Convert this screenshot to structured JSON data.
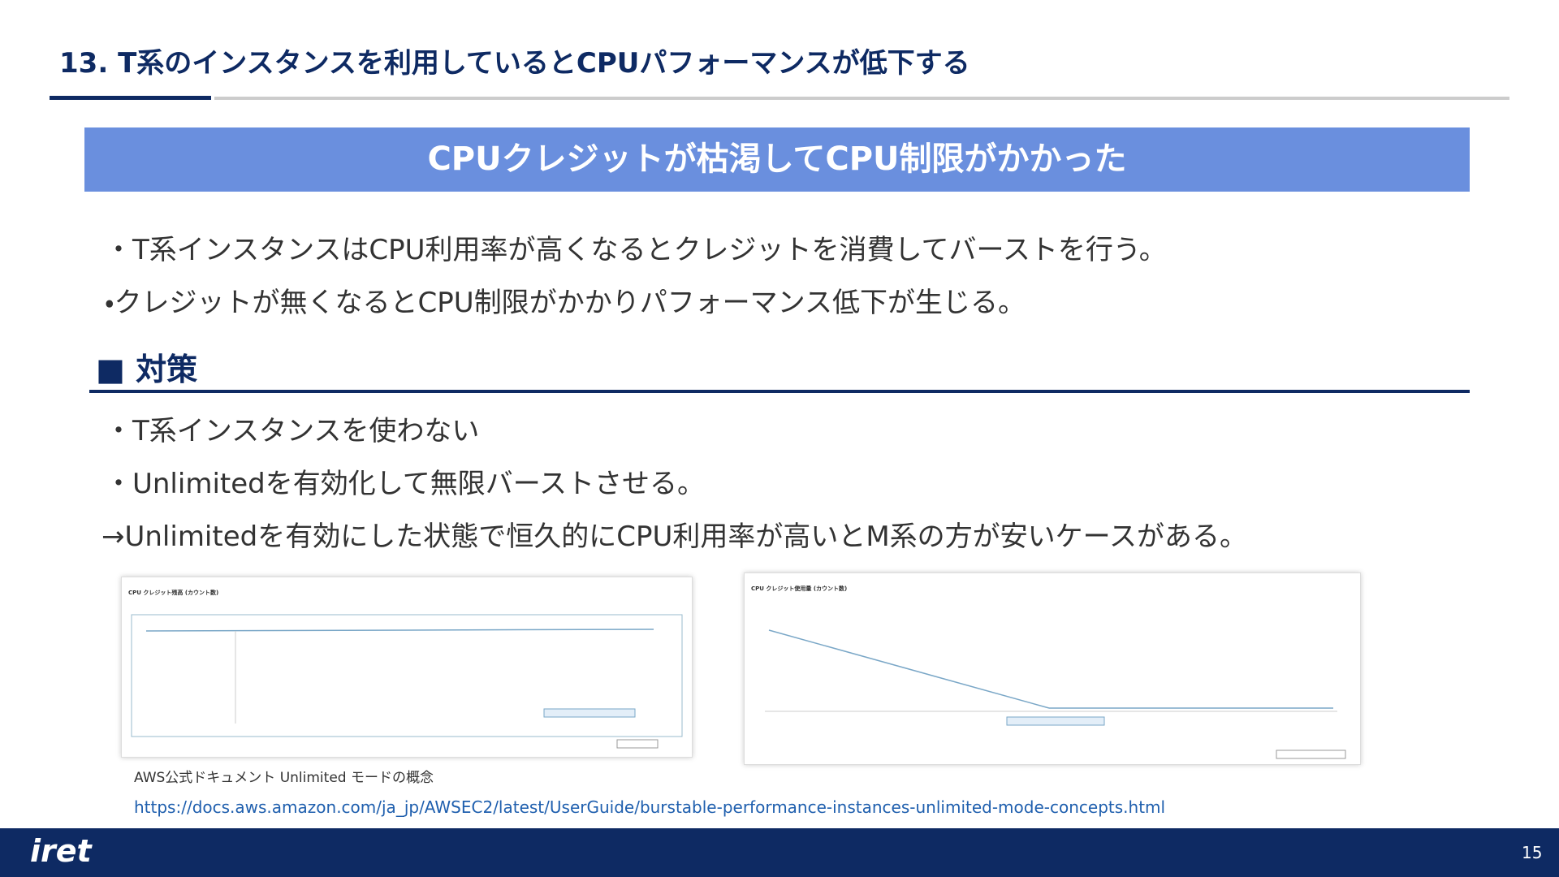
{
  "header": {
    "title": "13.  T系のインスタンスを利用しているとCPUパフォーマンスが低下する"
  },
  "banner": "CPUクレジットが枯渇してCPU制限がかかった",
  "cause": [
    "・T系インスタンスはCPU利用率が高くなるとクレジットを消費してバーストを行う。",
    "・クレジットが無くなるとCPU制限がかかりパフォーマンス低下が生じる。"
  ],
  "section": {
    "heading": "■ 対策",
    "items": [
      "・T系インスタンスを使わない",
      "・Unlimitedを有効化して無限バーストさせる。",
      "→Unlimitedを有効にした状態で恒久的にCPU利用率が高いとM系の方が安いケースがある。"
    ]
  },
  "screenshots": [
    {
      "title": "CPU クレジット残高 (カウント数)"
    },
    {
      "title": "CPU クレジット使用量 (カウント数)"
    }
  ],
  "source": {
    "caption": "AWS公式ドキュメント Unlimited モードの概念",
    "url": "https://docs.aws.amazon.com/ja_jp/AWSEC2/latest/UserGuide/burstable-performance-instances-unlimited-mode-concepts.html"
  },
  "footer": {
    "logo": "iret",
    "page": "15"
  }
}
